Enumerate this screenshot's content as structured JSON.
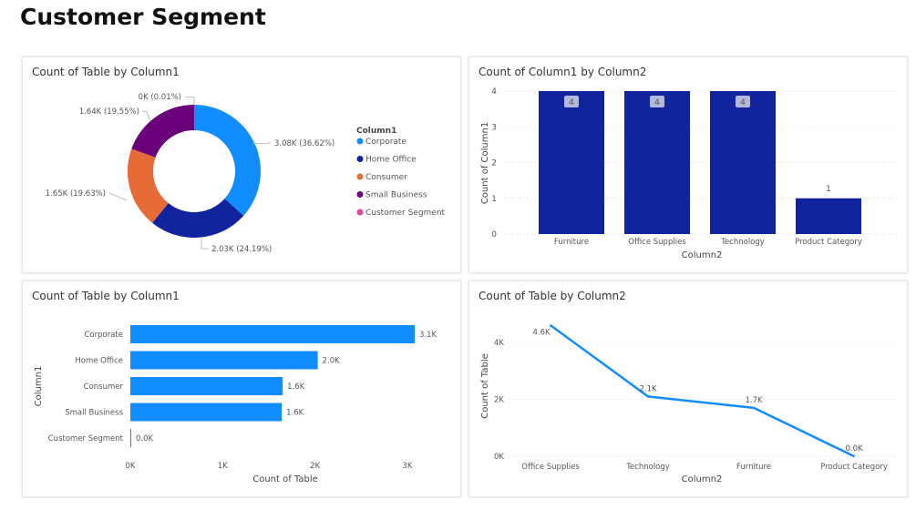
{
  "page_title": "Customer Segment",
  "chart_data": [
    {
      "type": "pie",
      "variant": "donut",
      "title": "Count of Table by Column1",
      "legend_title": "Column1",
      "legend_position": "right",
      "slices": [
        {
          "name": "Corporate",
          "value": 3080,
          "percent": 36.62,
          "label": "3.08K (36.62%)",
          "color": "#118DFF"
        },
        {
          "name": "Home Office",
          "value": 2030,
          "percent": 24.19,
          "label": "2.03K (24.19%)",
          "color": "#12239E"
        },
        {
          "name": "Consumer",
          "value": 1650,
          "percent": 19.63,
          "label": "1.65K (19.63%)",
          "color": "#E66C37"
        },
        {
          "name": "Small Business",
          "value": 1640,
          "percent": 19.55,
          "label": "1.64K (19.55%)",
          "color": "#6B007B"
        },
        {
          "name": "Customer Segment",
          "value": 1,
          "percent": 0.01,
          "label": "0K (0.01%)",
          "color": "#E044A7"
        }
      ]
    },
    {
      "type": "bar",
      "title": "Count of Column1 by Column2",
      "xlabel": "Column2",
      "ylabel": "Count of Column1",
      "categories": [
        "Furniture",
        "Office Supplies",
        "Technology",
        "Product Category"
      ],
      "values": [
        4,
        4,
        4,
        1
      ],
      "data_labels": [
        "4",
        "4",
        "4",
        "1"
      ],
      "ylim": [
        0,
        4
      ],
      "yticks": [
        "0",
        "1",
        "2",
        "3",
        "4"
      ],
      "grid": true,
      "color": "#12239E"
    },
    {
      "type": "bar",
      "orientation": "horizontal",
      "title": "Count of Table by Column1",
      "xlabel": "Count of Table",
      "ylabel": "Column1",
      "categories": [
        "Corporate",
        "Home Office",
        "Consumer",
        "Small Business",
        "Customer Segment"
      ],
      "values": [
        3080,
        2030,
        1650,
        1640,
        1
      ],
      "data_labels": [
        "3.1K",
        "2.0K",
        "1.6K",
        "1.6K",
        "0.0K"
      ],
      "xlim": [
        0,
        3000
      ],
      "xticks": [
        "0K",
        "1K",
        "2K",
        "3K"
      ],
      "grid": false,
      "color": "#118DFF"
    },
    {
      "type": "line",
      "title": "Count of Table by Column2",
      "xlabel": "Column2",
      "ylabel": "Count of Table",
      "categories": [
        "Office Supplies",
        "Technology",
        "Furniture",
        "Product Category"
      ],
      "values": [
        4600,
        2100,
        1700,
        1
      ],
      "data_labels": [
        "4.6K",
        "2.1K",
        "1.7K",
        "0.0K"
      ],
      "ylim": [
        0,
        4000
      ],
      "yticks": [
        "0K",
        "2K",
        "4K"
      ],
      "grid": true,
      "color": "#118DFF"
    }
  ]
}
